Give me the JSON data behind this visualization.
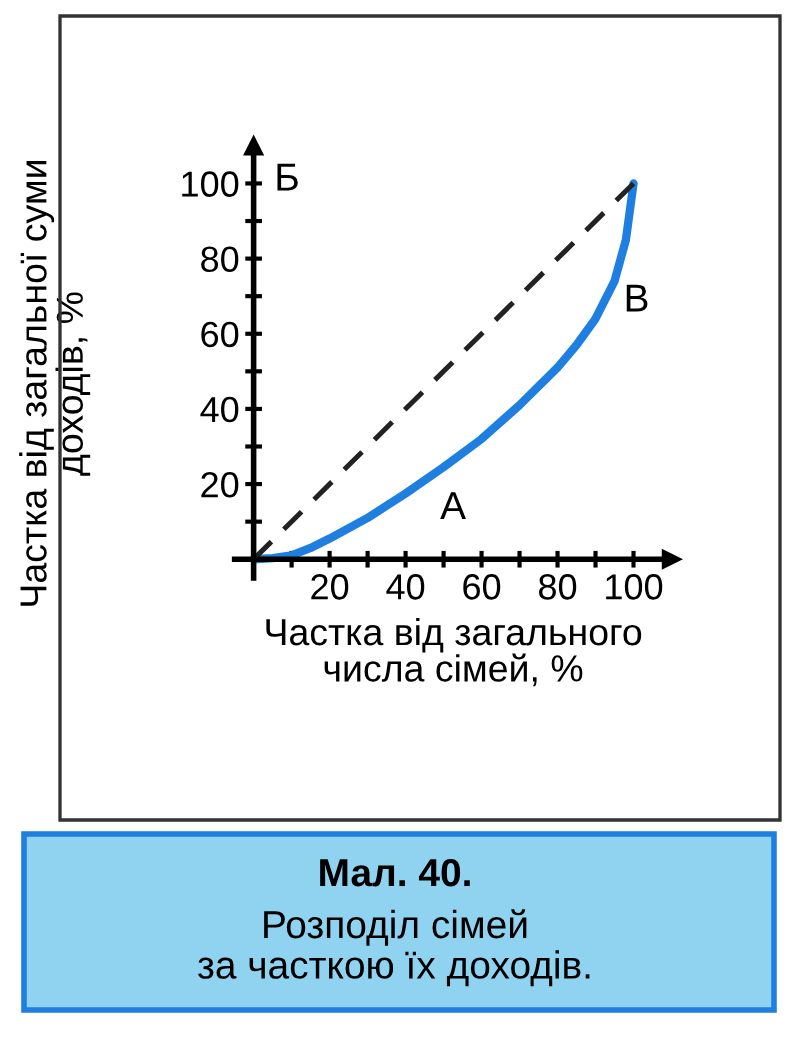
{
  "chart_data": {
    "type": "line",
    "title": "Мал. 40.",
    "subtitle": "Розподіл сімей\nза часткою їх доходів.",
    "xlabel": "Частка від загального\nчисла сімей, %",
    "ylabel": "Частка від загальної суми\nдоходів, %",
    "x": [
      0,
      5,
      10,
      15,
      20,
      30,
      40,
      50,
      60,
      70,
      80,
      85,
      90,
      95,
      98,
      100
    ],
    "series": [
      {
        "color": "#1e7fe0",
        "line_style": "solid",
        "values": [
          0,
          0.3,
          1,
          3,
          5.5,
          11,
          17.5,
          24.5,
          32,
          41,
          51,
          57,
          64,
          74,
          85,
          100
        ]
      },
      {
        "color": "#222222",
        "line_style": "dashed",
        "x": [
          0,
          100
        ],
        "values": [
          0,
          100
        ]
      }
    ],
    "xlim": [
      -5,
      110
    ],
    "ylim": [
      -5,
      110
    ],
    "xticks": [
      {
        "value": 10,
        "label": null
      },
      20,
      {
        "value": 30,
        "label": null
      },
      40,
      {
        "value": 50,
        "label": null
      },
      60,
      {
        "value": 70,
        "label": null
      },
      80,
      {
        "value": 90,
        "label": null
      },
      100
    ],
    "yticks": [
      {
        "value": 10,
        "label": null
      },
      20,
      {
        "value": 30,
        "label": null
      },
      40,
      {
        "value": 50,
        "label": null
      },
      60,
      {
        "value": 70,
        "label": null
      },
      80,
      {
        "value": 90,
        "label": null
      },
      100
    ],
    "annotations": [
      "А",
      "Б",
      "В"
    ],
    "grid": false,
    "legend": false,
    "marker": "none"
  }
}
